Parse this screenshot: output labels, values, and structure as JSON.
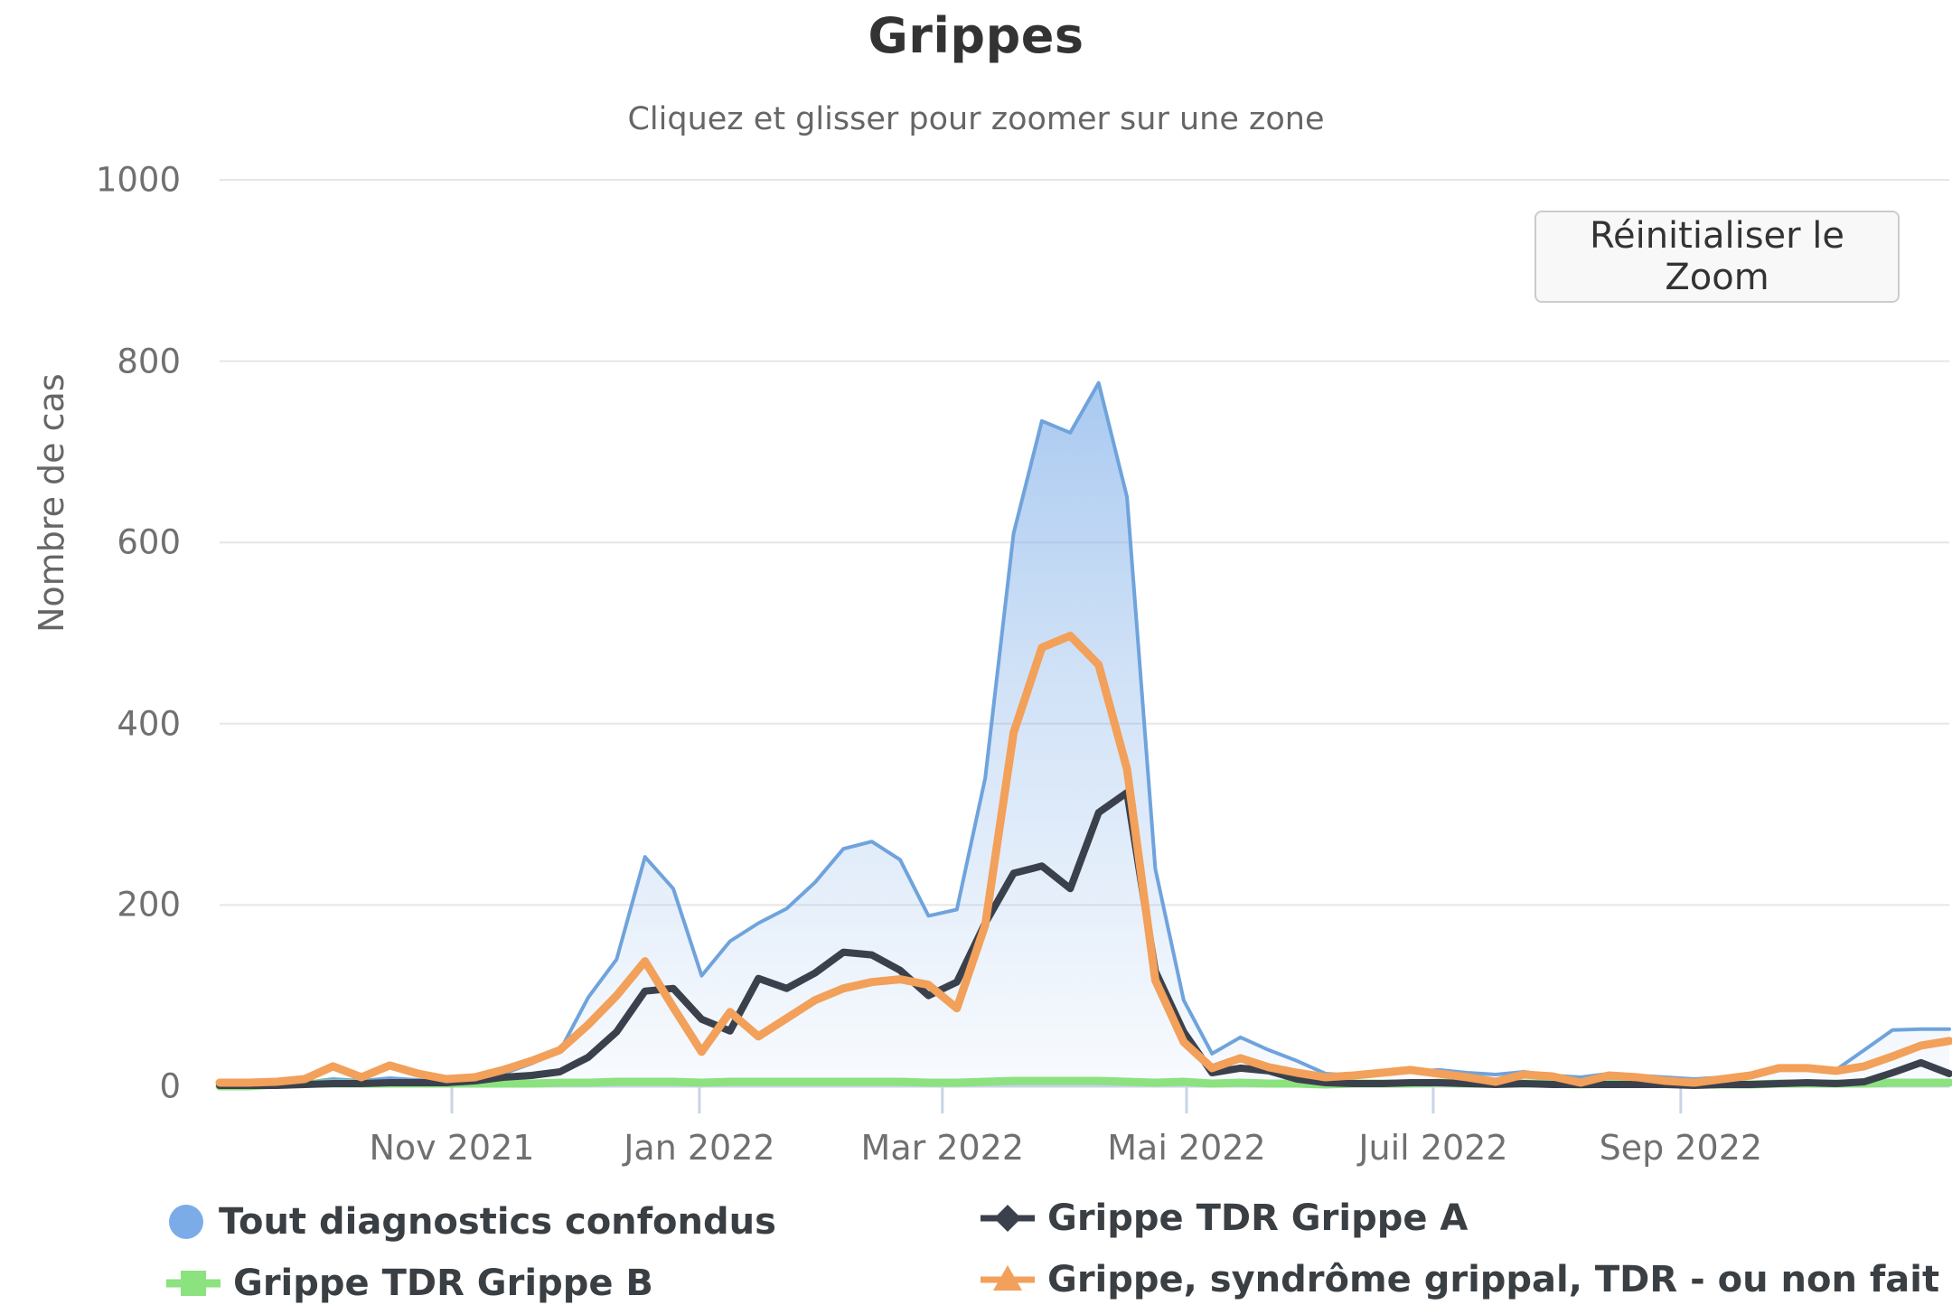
{
  "header": {
    "title": "Grippes",
    "subtitle": "Cliquez et glisser pour zoomer sur une zone"
  },
  "toolbar": {
    "reset_zoom_label": "Réinitialiser le Zoom"
  },
  "y_axis": {
    "title": "Nombre de cas"
  },
  "colors": {
    "grid": "#e6e6e6",
    "axis": "#c9d4e6",
    "tick_text": "#707070",
    "title_text": "#333333",
    "subtitle_text": "#666666",
    "legend_text": "#3a3f44",
    "button_border": "#cccccc",
    "button_bg": "#f8f8f8"
  },
  "chart_data": {
    "type": "area",
    "title": "Grippes",
    "xlabel": "",
    "ylabel": "Nombre de cas",
    "ylim": [
      0,
      1000
    ],
    "y_ticks": [
      0,
      200,
      400,
      600,
      800,
      1000
    ],
    "grid": "horizontal",
    "legend_position": "bottom",
    "x_unit": "week",
    "x_ticks": [
      {
        "label": "Nov 2021",
        "week": 8.19
      },
      {
        "label": "Jan 2022",
        "week": 16.92
      },
      {
        "label": "Mar 2022",
        "week": 25.49
      },
      {
        "label": "Mai 2022",
        "week": 34.1
      },
      {
        "label": "Juil 2022",
        "week": 42.8
      },
      {
        "label": "Sep 2022",
        "week": 51.53
      }
    ],
    "series": [
      {
        "name": "Tout diagnostics confondus",
        "type": "area",
        "marker": "circle",
        "color": "#7bace8",
        "line_color": "#6fa3dc",
        "values": [
          2,
          2,
          3,
          4,
          8,
          6,
          9,
          7,
          5,
          8,
          14,
          25,
          39,
          98,
          140,
          253,
          218,
          122,
          160,
          180,
          196,
          225,
          262,
          270,
          250,
          188,
          195,
          340,
          610,
          734,
          721,
          776,
          650,
          240,
          95,
          36,
          54,
          40,
          28,
          14,
          12,
          14,
          16,
          18,
          15,
          13,
          16,
          12,
          10,
          14,
          12,
          10,
          8,
          10,
          12,
          20,
          21,
          18,
          40,
          62,
          63,
          63
        ]
      },
      {
        "name": "Grippe TDR Grippe A",
        "type": "line",
        "marker": "diamond",
        "color": "#3b414c",
        "line_color": "#3b414c",
        "values": [
          1,
          1,
          1,
          2,
          3,
          3,
          4,
          4,
          4,
          6,
          10,
          12,
          16,
          32,
          60,
          105,
          108,
          74,
          61,
          119,
          108,
          125,
          148,
          145,
          128,
          100,
          115,
          180,
          235,
          243,
          218,
          302,
          324,
          127,
          60,
          15,
          20,
          17,
          8,
          4,
          3,
          3,
          4,
          4,
          3,
          2,
          3,
          2,
          2,
          2,
          2,
          2,
          1,
          2,
          2,
          3,
          4,
          3,
          5,
          15,
          26,
          14
        ]
      },
      {
        "name": "Grippe TDR Grippe B",
        "type": "line",
        "marker": "square",
        "color": "#8be27f",
        "line_color": "#8be27f",
        "values": [
          0,
          0,
          2,
          3,
          3,
          3,
          3,
          3,
          3,
          3,
          3,
          3,
          4,
          4,
          5,
          5,
          5,
          4,
          5,
          5,
          5,
          5,
          5,
          5,
          5,
          4,
          4,
          5,
          6,
          6,
          6,
          6,
          5,
          4,
          5,
          3,
          4,
          3,
          3,
          2,
          3,
          3,
          3,
          4,
          3,
          3,
          3,
          3,
          2,
          3,
          3,
          3,
          2,
          2,
          2,
          3,
          3,
          3,
          3,
          4,
          4,
          4
        ]
      },
      {
        "name": "Grippe, syndrôme grippal, TDR - ou non fait",
        "type": "line",
        "marker": "triangle",
        "color": "#f2a05a",
        "line_color": "#f2a05a",
        "values": [
          4,
          4,
          5,
          8,
          22,
          10,
          23,
          14,
          8,
          10,
          18,
          28,
          40,
          68,
          100,
          138,
          87,
          38,
          82,
          55,
          75,
          95,
          108,
          115,
          118,
          112,
          86,
          178,
          390,
          484,
          497,
          465,
          350,
          117,
          49,
          20,
          31,
          21,
          15,
          10,
          12,
          15,
          18,
          14,
          10,
          5,
          13,
          11,
          4,
          12,
          10,
          6,
          4,
          8,
          12,
          20,
          20,
          17,
          22,
          33,
          45,
          50
        ]
      }
    ]
  }
}
